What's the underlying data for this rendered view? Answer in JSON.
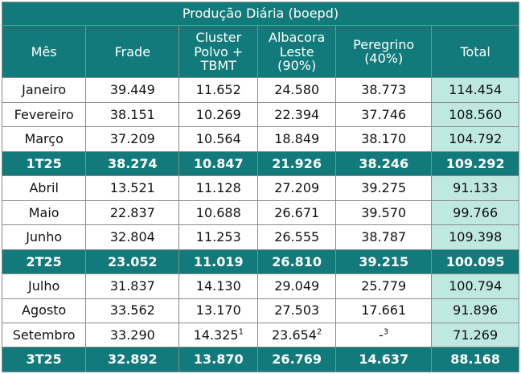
{
  "title": "Produção Diária (boepd)",
  "headers": [
    "Mês",
    "Frade",
    "Cluster\nPolvo +\nTBMT",
    "Albacora\nLeste\n(90%)",
    "Peregrino\n(40%)",
    "Total"
  ],
  "rows": [
    {
      "type": "month",
      "cells": [
        "Janeiro",
        "39.449",
        "11.652",
        "24.580",
        "38.773",
        "114.454"
      ]
    },
    {
      "type": "month",
      "cells": [
        "Fevereiro",
        "38.151",
        "10.269",
        "22.394",
        "37.746",
        "108.560"
      ]
    },
    {
      "type": "month",
      "cells": [
        "Março",
        "37.209",
        "10.564",
        "18.849",
        "38.170",
        "104.792"
      ]
    },
    {
      "type": "quarter",
      "cells": [
        "1T25",
        "38.274",
        "10.847",
        "21.926",
        "38.246",
        "109.292"
      ]
    },
    {
      "type": "month",
      "cells": [
        "Abril",
        "13.521",
        "11.128",
        "27.209",
        "39.275",
        "91.133"
      ]
    },
    {
      "type": "month",
      "cells": [
        "Maio",
        "22.837",
        "10.688",
        "26.671",
        "39.570",
        "99.766"
      ]
    },
    {
      "type": "month",
      "cells": [
        "Junho",
        "32.804",
        "11.253",
        "26.555",
        "38.787",
        "109.398"
      ]
    },
    {
      "type": "quarter",
      "cells": [
        "2T25",
        "23.052",
        "11.019",
        "26.810",
        "39.215",
        "100.095"
      ]
    },
    {
      "type": "month",
      "cells": [
        "Julho",
        "31.837",
        "14.130",
        "29.049",
        "25.779",
        "100.794"
      ]
    },
    {
      "type": "month",
      "cells": [
        "Agosto",
        "33.562",
        "13.170",
        "27.503",
        "17.661",
        "91.896"
      ]
    },
    {
      "type": "month",
      "cells": [
        "Setembro",
        "33.290",
        "14.325",
        "23.654",
        "-",
        "71.269"
      ],
      "notes": [
        "",
        "",
        "1",
        "2",
        "3",
        ""
      ]
    },
    {
      "type": "quarter",
      "cells": [
        "3T25",
        "32.892",
        "13.870",
        "26.769",
        "14.637",
        "88.168"
      ]
    }
  ]
}
